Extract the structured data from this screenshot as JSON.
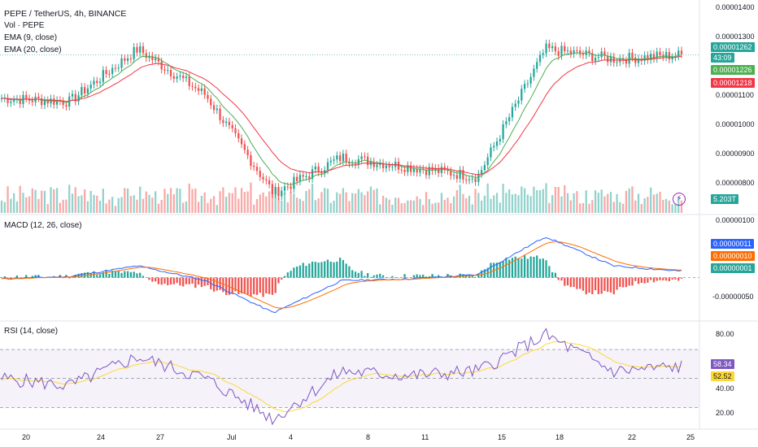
{
  "legend": {
    "title": "PEPE / TetherUS, 4h, BINANCE",
    "vol": "Vol · PEPE",
    "ema9": "EMA (9, close)",
    "ema20": "EMA (20, close)",
    "macd": "MACD (12, 26, close)",
    "rsi": "RSI (14, close)"
  },
  "price_axis": [
    "0.00001400",
    "0.00001300",
    "0.00001100",
    "0.00001000",
    "0.00000900",
    "0.00000800"
  ],
  "price_tags": {
    "last": "0.00001262",
    "countdown": "43:09",
    "ema9": "0.00001226",
    "ema20": "0.00001218",
    "volume": "5.203T"
  },
  "macd_axis": [
    "0.00000100",
    "-0.00000050"
  ],
  "macd_tags": {
    "macd": "0.00000011",
    "signal": "0.00000010",
    "hist": "0.00000001"
  },
  "rsi_axis": [
    "80.00",
    "40.00",
    "20.00"
  ],
  "rsi_tags": {
    "rsi": "58.34",
    "ma": "52.52"
  },
  "time_axis": [
    "20",
    "24",
    "27",
    "Jul",
    "4",
    "8",
    "11",
    "15",
    "18",
    "22",
    "25"
  ],
  "colors": {
    "up": "#26a69a",
    "down": "#ef5350",
    "ema9": "#4caf50",
    "ema20": "#f23645",
    "macd": "#2962ff",
    "signal": "#ff6d00",
    "rsi": "#7e57c2",
    "rsi_ma": "#fdd835",
    "band": "#7e57c2"
  },
  "chart_data": {
    "type": "line",
    "series": [
      {
        "name": "PEPE / TetherUS, 4h, BINANCE",
        "x": [
          "20",
          "24",
          "27",
          "Jul",
          "4",
          "8",
          "11",
          "15",
          "18",
          "22",
          "24"
        ],
        "values": [
          1.13e-05,
          1.12e-05,
          1.28e-05,
          1.14e-05,
          8.4e-06,
          9.5e-06,
          9.2e-06,
          8.9e-06,
          1.28e-05,
          1.25e-05,
          1.262e-05
        ]
      },
      {
        "name": "MACD (12, 26, close)",
        "x": [
          "20",
          "24",
          "27",
          "Jul",
          "4",
          "8",
          "11",
          "15",
          "18",
          "22",
          "24"
        ],
        "values": [
          -2e-08,
          2e-08,
          2e-07,
          -5e-08,
          -6e-07,
          -5e-08,
          -2e-08,
          5e-08,
          7e-07,
          2e-07,
          1.1e-07
        ]
      },
      {
        "name": "RSI (14, close)",
        "x": [
          "20",
          "24",
          "27",
          "Jul",
          "4",
          "8",
          "11",
          "15",
          "18",
          "22",
          "24"
        ],
        "values": [
          50,
          45,
          65,
          50,
          22,
          55,
          52,
          55,
          80,
          55,
          58.34
        ]
      }
    ],
    "ema9_last": 1.226e-05,
    "ema20_last": 1.218e-05,
    "volume_last": "5.203T",
    "macd_signal_last": 1e-07,
    "macd_hist_last": 1e-08,
    "rsi_ma_last": 52.52,
    "rsi_bands": [
      70,
      50,
      30
    ]
  }
}
